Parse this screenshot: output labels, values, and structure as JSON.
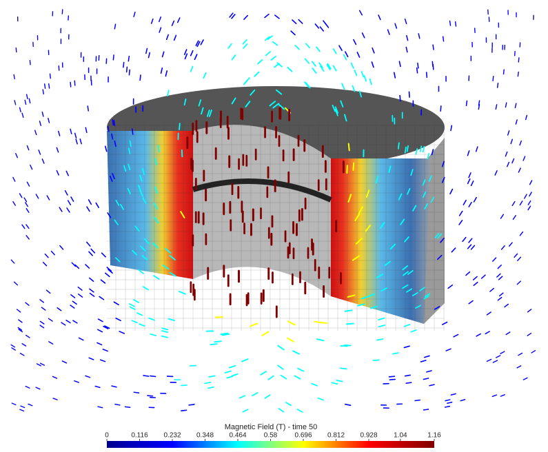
{
  "colorbar": {
    "title": "Magnetic Field (T) - time 50",
    "colormap": "jet",
    "lim": [
      0,
      1.16
    ],
    "ticks": [
      0,
      0.116,
      0.232,
      0.348,
      0.464,
      0.58,
      0.696,
      0.812,
      0.928,
      1.04,
      1.16
    ]
  }
}
